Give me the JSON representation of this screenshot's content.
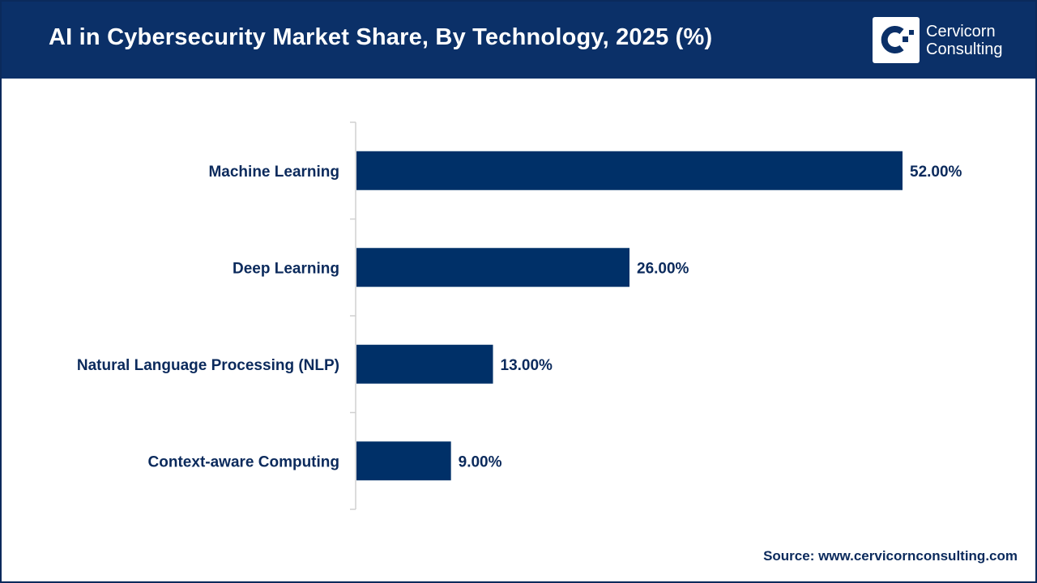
{
  "header": {
    "title": "AI in Cybersecurity Market Share, By Technology, 2025 (%)",
    "logo_text_line1": "Cervicorn",
    "logo_text_line2": "Consulting"
  },
  "source": "Source: www.cervicornconsulting.com",
  "colors": {
    "header": "#0b3068",
    "bar": "#003068",
    "axis": "#d0d0d0"
  },
  "chart_data": {
    "type": "bar",
    "orientation": "horizontal",
    "categories": [
      "Machine Learning",
      "Deep Learning",
      "Natural Language Processing (NLP)",
      "Context-aware Computing"
    ],
    "values": [
      52,
      26,
      13,
      9
    ],
    "data_labels": [
      "52.00%",
      "26.00%",
      "13.00%",
      "9.00%"
    ],
    "title": "AI in Cybersecurity Market Share, By Technology, 2025 (%)",
    "xlabel": "",
    "ylabel": "",
    "xlim": [
      0,
      52
    ],
    "grid": false,
    "legend": "none"
  }
}
